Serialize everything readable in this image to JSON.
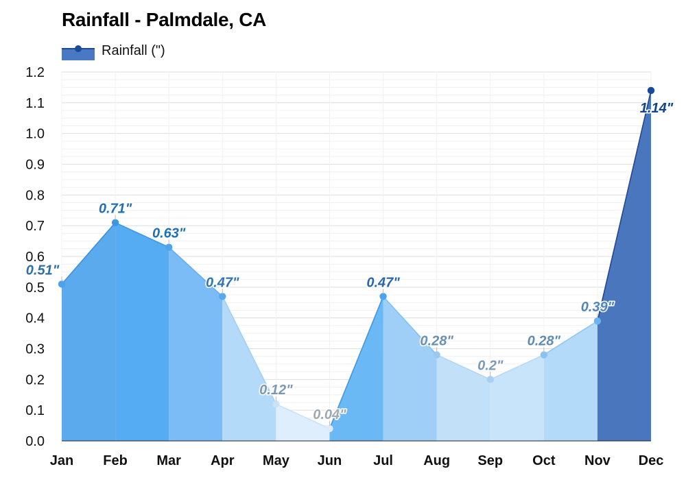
{
  "chart_data": {
    "type": "area",
    "title": "Rainfall - Palmdale, CA",
    "categories": [
      "Jan",
      "Feb",
      "Mar",
      "Apr",
      "May",
      "Jun",
      "Jul",
      "Aug",
      "Sep",
      "Oct",
      "Nov",
      "Dec"
    ],
    "series": [
      {
        "name": "Rainfall (\")",
        "values": [
          0.51,
          0.71,
          0.63,
          0.47,
          0.12,
          0.04,
          0.47,
          0.28,
          0.2,
          0.28,
          0.39,
          1.14
        ],
        "data_labels": [
          "0.51\"",
          "0.71\"",
          "0.63\"",
          "0.47\"",
          "0.12\"",
          "0.04\"",
          "0.47\"",
          "0.28\"",
          "0.2\"",
          "0.28\"",
          "0.39\"",
          "1.14\""
        ]
      }
    ],
    "ylim": [
      0,
      1.2
    ],
    "yticks": [
      "0.0",
      "0.1",
      "0.2",
      "0.3",
      "0.4",
      "0.5",
      "0.6",
      "0.7",
      "0.8",
      "0.9",
      "1.0",
      "1.1",
      "1.2"
    ],
    "grid": true,
    "legend_position": "top-left",
    "colors": {
      "legend_fill": "#4a78c2",
      "legend_line": "#1a4a9a",
      "grid": "#e6e6e6",
      "axis": "#222222"
    },
    "segment_fills": [
      "#5baaee",
      "#55acf2",
      "#7cbcf6",
      "#b4daf9",
      "#dfeefc",
      "#6bb9f4",
      "#9fcff7",
      "#c2e1f9",
      "#c8e4fa",
      "#b3dbf9",
      "#4a76bd"
    ],
    "segment_lines": [
      "#3a92df",
      "#3f96e0",
      "#63aef0",
      "#a2cff5",
      "#c6e1f9",
      "#3d98e4",
      "#84c0f3",
      "#b0d6f5",
      "#b5d9f6",
      "#8ec6f4",
      "#1c4896"
    ],
    "point_colors": [
      "#4aa3ee",
      "#3f96e0",
      "#4ea3ea",
      "#5aa8ec",
      "#c9e2f8",
      "#dcecfa",
      "#4aa3ee",
      "#9cc9ef",
      "#a8cff2",
      "#8cc2f0",
      "#6ab2f1",
      "#1a4aa0"
    ],
    "label_colors": [
      "#2f6fa8",
      "#1f6fb5",
      "#1f6fb5",
      "#3275ae",
      "#7a98b6",
      "#9fa9b3",
      "#2968a8",
      "#6a8fb5",
      "#7b9ab8",
      "#5f8bb5",
      "#4f86bd",
      "#12428a"
    ]
  }
}
